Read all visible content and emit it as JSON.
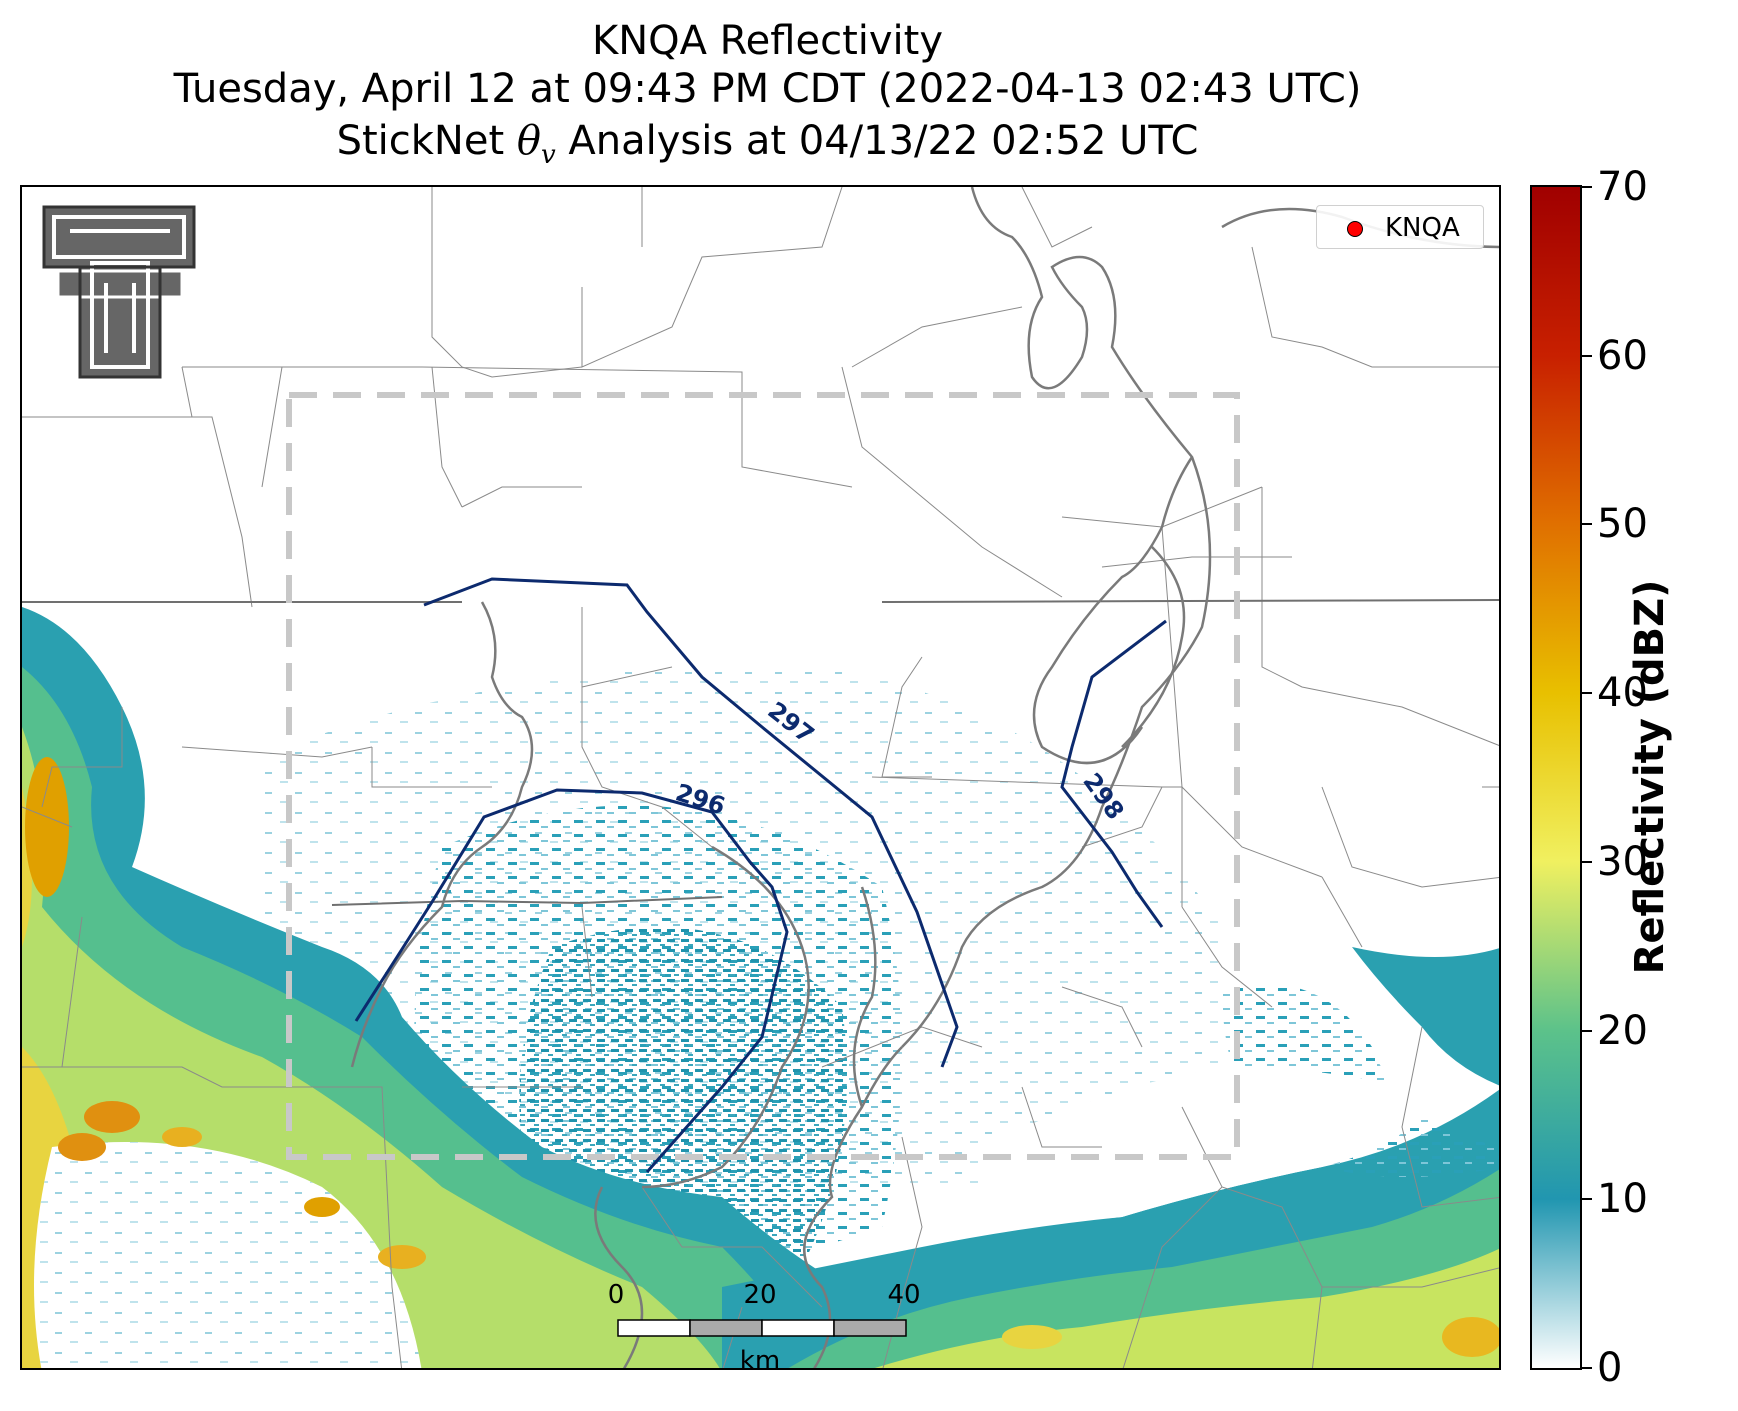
{
  "title": {
    "line1": "KNQA Reflectivity",
    "line2": "Tuesday, April 12 at 09:43 PM CDT (2022-04-13 02:43 UTC)",
    "line3_prefix": "StickNet ",
    "line3_symbol": "θ",
    "line3_sub": "v",
    "line3_suffix": " Analysis at 04/13/22 02:52 UTC"
  },
  "legend": {
    "label": "KNQA",
    "marker_color": "#ff0000"
  },
  "contours": [
    {
      "label": "296",
      "color": "#0c2a6e"
    },
    {
      "label": "297",
      "color": "#0c2a6e"
    },
    {
      "label": "298",
      "color": "#0c2a6e"
    }
  ],
  "scalebar": {
    "ticks": [
      "0",
      "20",
      "40"
    ],
    "unit": "km"
  },
  "colorbar": {
    "label": "Reflectivity (dBZ)",
    "ticks": [
      "0",
      "10",
      "20",
      "30",
      "40",
      "50",
      "60",
      "70"
    ],
    "range": [
      0,
      70
    ],
    "colors": [
      "#ffffff",
      "#2196b0",
      "#5cc28a",
      "#f0f060",
      "#e8c000",
      "#e07000",
      "#c82000",
      "#a00000"
    ]
  },
  "logo": {
    "icon": "texas-tech-double-t-logo"
  },
  "analysis_domain": {
    "style": "dashed-box",
    "color": "#c8c8c8"
  }
}
